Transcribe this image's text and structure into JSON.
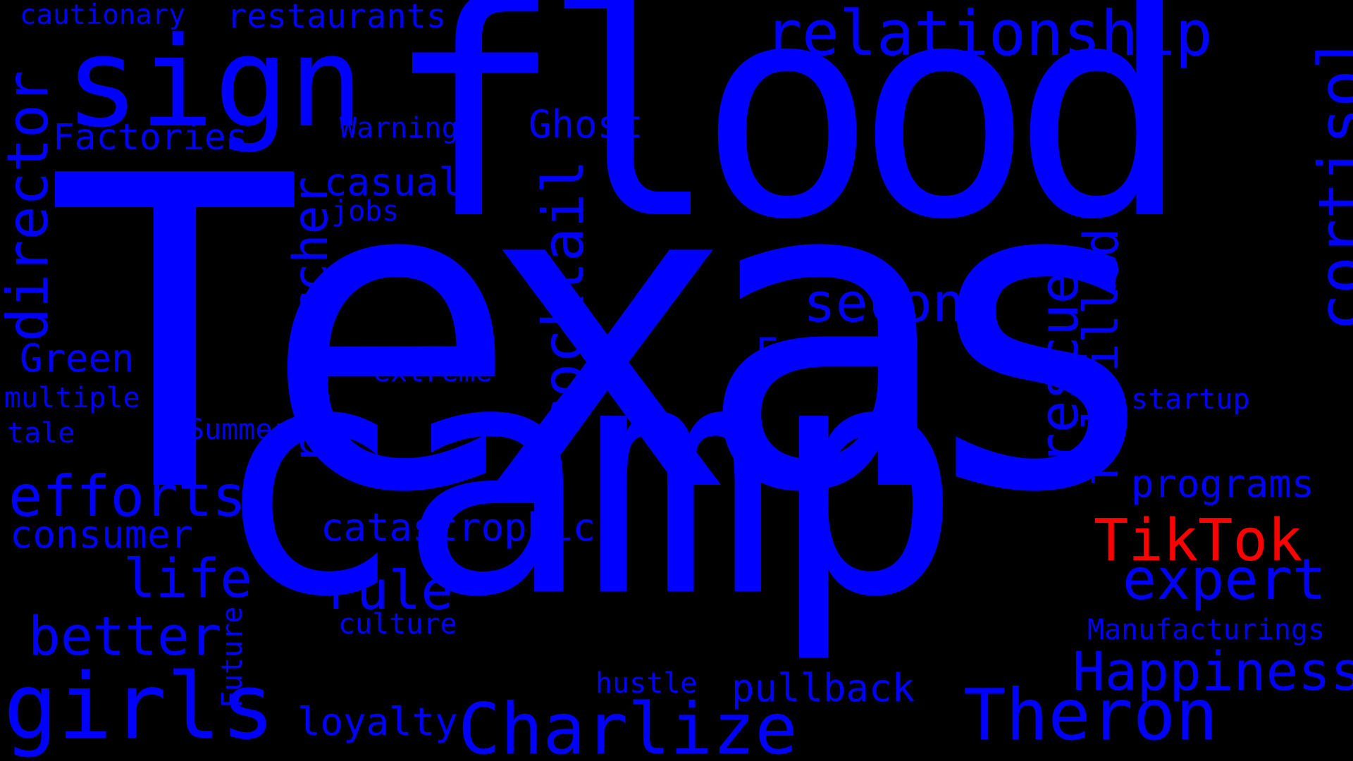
{
  "cloud": {
    "background": "#000000",
    "primary_color": "#0000ff",
    "highlight_color": "#ff0000",
    "words": [
      {
        "text": "Texas"
      },
      {
        "text": "camp"
      },
      {
        "text": "flood"
      },
      {
        "text": "sign"
      },
      {
        "text": "relationship"
      },
      {
        "text": "cortisol"
      },
      {
        "text": "director"
      },
      {
        "text": "cautionary"
      },
      {
        "text": "restaurants"
      },
      {
        "text": "Factories"
      },
      {
        "text": "Warning"
      },
      {
        "text": "Ghost"
      },
      {
        "text": "casual"
      },
      {
        "text": "jobs"
      },
      {
        "text": "researcher"
      },
      {
        "text": "cocktail"
      },
      {
        "text": "second"
      },
      {
        "text": "rescue"
      },
      {
        "text": "fulfilled"
      },
      {
        "text": "Green"
      },
      {
        "text": "Fast"
      },
      {
        "text": "extreme"
      },
      {
        "text": "multiple"
      },
      {
        "text": "startup"
      },
      {
        "text": "tale"
      },
      {
        "text": "Summer"
      },
      {
        "text": "efforts"
      },
      {
        "text": "programs"
      },
      {
        "text": "consumer"
      },
      {
        "text": "catastrophic"
      },
      {
        "text": "TikTok",
        "highlight": true
      },
      {
        "text": "life"
      },
      {
        "text": "rule"
      },
      {
        "text": "expert"
      },
      {
        "text": "better"
      },
      {
        "text": "culture"
      },
      {
        "text": "Manufacturings"
      },
      {
        "text": "Future"
      },
      {
        "text": "Happiness"
      },
      {
        "text": "girls"
      },
      {
        "text": "hustle"
      },
      {
        "text": "pullback"
      },
      {
        "text": "loyalty"
      },
      {
        "text": "Charlize"
      },
      {
        "text": "Theron"
      }
    ]
  }
}
